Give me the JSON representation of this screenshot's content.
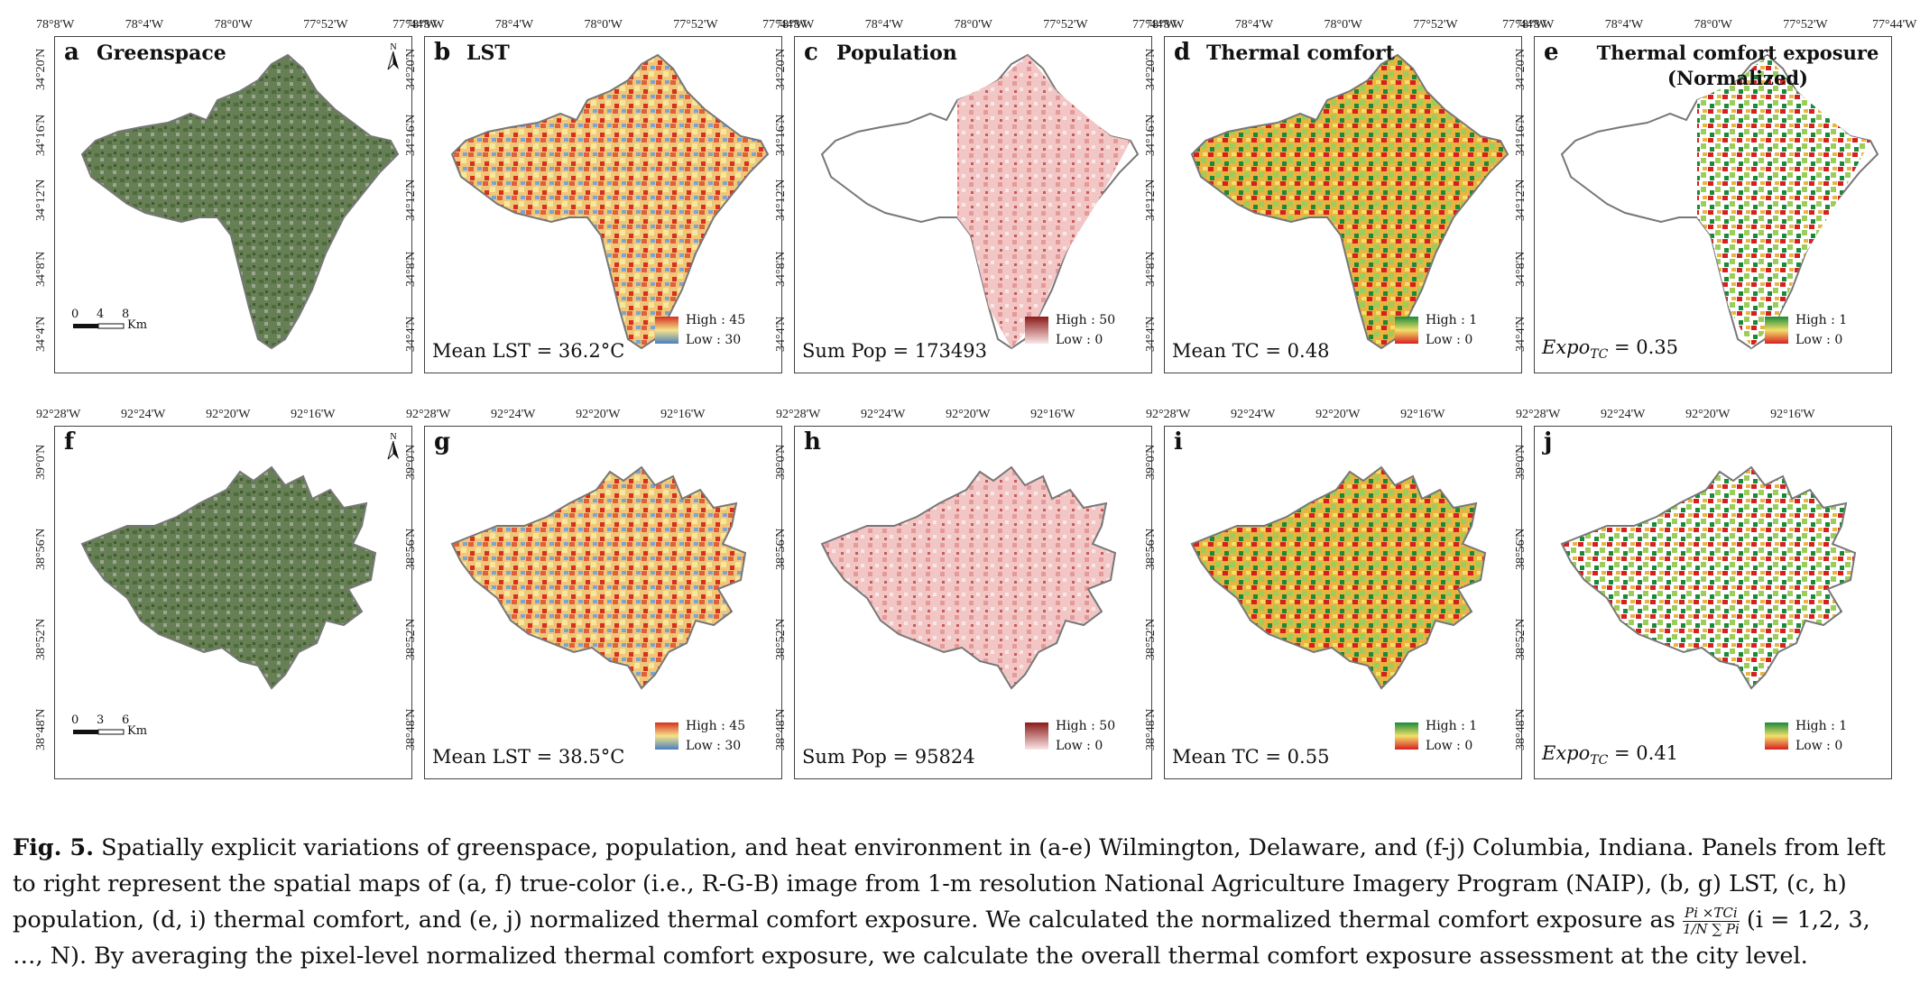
{
  "row1": {
    "top_ticks": [
      "78°8'W",
      "78°4'W",
      "78°0'W",
      "77°52'W",
      "77°44'W"
    ],
    "left_ticks": [
      "34°20'N",
      "34°16'N",
      "34°12'N",
      "34°8'N",
      "34°4'N"
    ],
    "panels": [
      {
        "letter": "a",
        "title": "Greenspace",
        "stat": "",
        "legend_high": "",
        "legend_low": ""
      },
      {
        "letter": "b",
        "title": "LST",
        "stat": "Mean LST = 36.2°C",
        "legend_high": "High : 45",
        "legend_low": "Low : 30"
      },
      {
        "letter": "c",
        "title": "Population",
        "stat": "Sum Pop = 173493",
        "legend_high": "High : 50",
        "legend_low": "Low : 0"
      },
      {
        "letter": "d",
        "title": "Thermal comfort",
        "stat": "Mean TC = 0.48",
        "legend_high": "High : 1",
        "legend_low": "Low : 0"
      },
      {
        "letter": "e",
        "title": "Thermal comfort exposure",
        "title2": "(Normalized)",
        "stat_prefix": "Expo",
        "stat_sub": "TC",
        "stat": "= 0.35",
        "legend_high": "High : 1",
        "legend_low": "Low : 0"
      }
    ],
    "scale": {
      "labels": [
        "0",
        "4",
        "8"
      ],
      "unit": "Km"
    }
  },
  "row2": {
    "top_ticks": [
      "92°28'W",
      "92°24'W",
      "92°20'W",
      "92°16'W"
    ],
    "left_ticks": [
      "39°0'N",
      "38°56'N",
      "38°52'N",
      "38°48'N"
    ],
    "panels": [
      {
        "letter": "f",
        "title": "",
        "stat": "",
        "legend_high": "",
        "legend_low": ""
      },
      {
        "letter": "g",
        "title": "",
        "stat": "Mean LST = 38.5°C",
        "legend_high": "High : 45",
        "legend_low": "Low : 30"
      },
      {
        "letter": "h",
        "title": "",
        "stat": "Sum Pop = 95824",
        "legend_high": "High : 50",
        "legend_low": "Low : 0"
      },
      {
        "letter": "i",
        "title": "",
        "stat": "Mean TC = 0.55",
        "legend_high": "High : 1",
        "legend_low": "Low : 0"
      },
      {
        "letter": "j",
        "title": "",
        "stat_prefix": "Expo",
        "stat_sub": "TC",
        "stat": "= 0.41",
        "legend_high": "High : 1",
        "legend_low": "Low : 0"
      }
    ],
    "scale": {
      "labels": [
        "0",
        "3",
        "6"
      ],
      "unit": "Km"
    }
  },
  "north_label": "N",
  "caption": {
    "fig": "Fig. 5.",
    "text1": "Spatially explicit variations of greenspace, population, and heat environment in (a-e) Wilmington, Delaware, and (f-j) Columbia, Indiana. Panels from left to right represent the spatial maps of (a, f) true-color (i.e., R-G-B) image from 1-m resolution National Agriculture Imagery Program (NAIP), (b, g) LST, (c, h) population, (d, i) thermal comfort, and (e, j) normalized thermal comfort exposure. We calculated the normalized thermal comfort exposure as",
    "frac_num": "Pi ×TCi",
    "frac_den": "1/N ∑ Pi",
    "text2": "(i = 1,2, 3, …, N). By averaging the pixel-level normalized thermal comfort exposure, we calculate the overall thermal comfort exposure assessment at the city level."
  },
  "colors": {
    "greenspace": "#5f7d4a",
    "lst_high": "#d7301f",
    "lst_mid": "#f4e38a",
    "lst_low": "#4a7fc0",
    "pop_high": "#8b1a1a",
    "pop_low": "#fbe6e6",
    "tc_high": "#1a8a3a",
    "tc_mid": "#f2e06a",
    "tc_low": "#d62020"
  }
}
